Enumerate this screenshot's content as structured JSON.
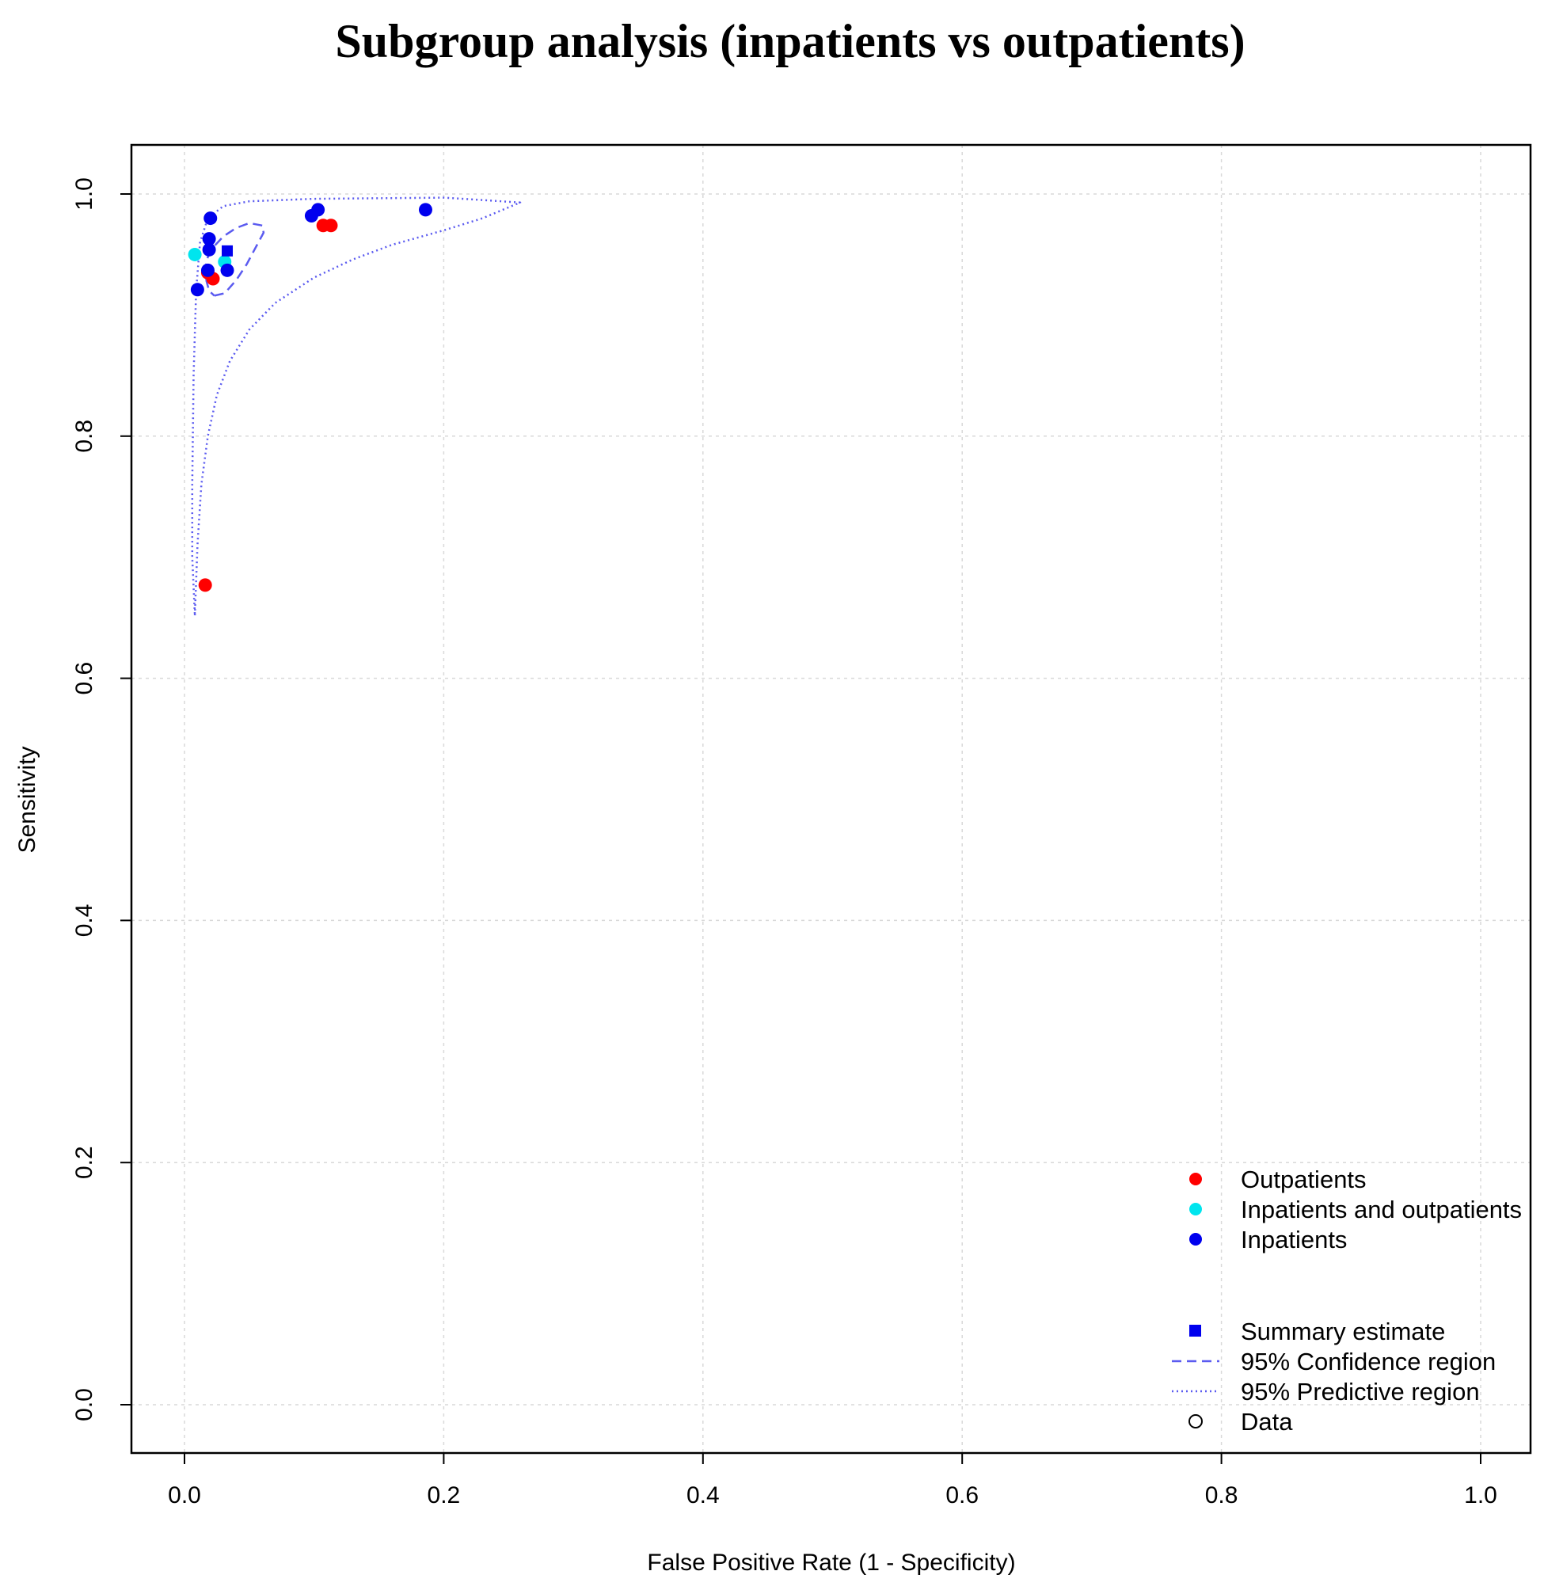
{
  "chart_data": {
    "type": "scatter",
    "title": "Subgroup analysis (inpatients vs outpatients)",
    "xlabel": "False Positive Rate (1 - Specificity)",
    "ylabel": "Sensitivity",
    "xlim": [
      0,
      1
    ],
    "ylim": [
      0,
      1
    ],
    "xticks": [
      0.0,
      0.2,
      0.4,
      0.6,
      0.8,
      1.0
    ],
    "yticks": [
      0.0,
      0.2,
      0.4,
      0.6,
      0.8,
      1.0
    ],
    "xtick_labels": [
      "0.0",
      "0.2",
      "0.4",
      "0.6",
      "0.8",
      "1.0"
    ],
    "ytick_labels": [
      "0.0",
      "0.2",
      "0.4",
      "0.6",
      "0.8",
      "1.0"
    ],
    "grid": true,
    "legend_position": "bottom-right",
    "series": [
      {
        "name": "Outpatients",
        "color": "#ff0000",
        "marker": "circle",
        "points": [
          [
            0.016,
            0.677
          ],
          [
            0.018,
            0.935
          ],
          [
            0.022,
            0.93
          ],
          [
            0.107,
            0.974
          ],
          [
            0.113,
            0.974
          ]
        ]
      },
      {
        "name": "Inpatients and outpatients",
        "color": "#00e5ee",
        "marker": "circle",
        "points": [
          [
            0.008,
            0.95
          ],
          [
            0.031,
            0.944
          ]
        ]
      },
      {
        "name": "Inpatients",
        "color": "#0000ee",
        "marker": "circle",
        "points": [
          [
            0.01,
            0.921
          ],
          [
            0.018,
            0.937
          ],
          [
            0.019,
            0.954
          ],
          [
            0.019,
            0.963
          ],
          [
            0.02,
            0.98
          ],
          [
            0.033,
            0.937
          ],
          [
            0.098,
            0.982
          ],
          [
            0.103,
            0.987
          ],
          [
            0.186,
            0.987
          ]
        ]
      }
    ],
    "summary_estimate": {
      "name": "Summary estimate",
      "color": "#0000ee",
      "marker": "square",
      "point": [
        0.033,
        0.953
      ]
    },
    "confidence_region": {
      "name": "95% Confidence region",
      "color": "#5b5bf0",
      "style": "dashed",
      "points": [
        [
          0.023,
          0.916
        ],
        [
          0.031,
          0.918
        ],
        [
          0.04,
          0.929
        ],
        [
          0.048,
          0.942
        ],
        [
          0.055,
          0.956
        ],
        [
          0.061,
          0.968
        ],
        [
          0.06,
          0.974
        ],
        [
          0.05,
          0.976
        ],
        [
          0.04,
          0.972
        ],
        [
          0.03,
          0.965
        ],
        [
          0.023,
          0.957
        ],
        [
          0.018,
          0.948
        ],
        [
          0.016,
          0.938
        ],
        [
          0.017,
          0.928
        ],
        [
          0.019,
          0.92
        ],
        [
          0.023,
          0.916
        ]
      ]
    },
    "predictive_region": {
      "name": "95% Predictive region",
      "color": "#5b5bf0",
      "style": "dotted",
      "points": [
        [
          0.008,
          0.652
        ],
        [
          0.01,
          0.71
        ],
        [
          0.013,
          0.76
        ],
        [
          0.018,
          0.8
        ],
        [
          0.025,
          0.834
        ],
        [
          0.035,
          0.862
        ],
        [
          0.05,
          0.888
        ],
        [
          0.07,
          0.91
        ],
        [
          0.1,
          0.931
        ],
        [
          0.13,
          0.946
        ],
        [
          0.16,
          0.958
        ],
        [
          0.2,
          0.97
        ],
        [
          0.23,
          0.98
        ],
        [
          0.259,
          0.993
        ],
        [
          0.2,
          0.997
        ],
        [
          0.1,
          0.996
        ],
        [
          0.05,
          0.994
        ],
        [
          0.03,
          0.99
        ],
        [
          0.018,
          0.98
        ],
        [
          0.012,
          0.96
        ],
        [
          0.009,
          0.92
        ],
        [
          0.007,
          0.85
        ],
        [
          0.006,
          0.76
        ],
        [
          0.006,
          0.7
        ],
        [
          0.008,
          0.652
        ]
      ]
    },
    "legend": {
      "groups": [
        "Outpatients",
        "Inpatients and outpatients",
        "Inpatients"
      ],
      "items": [
        "Summary estimate",
        "95% Confidence region",
        "95% Predictive region",
        "Data"
      ],
      "data_marker_color": "#000000"
    }
  }
}
